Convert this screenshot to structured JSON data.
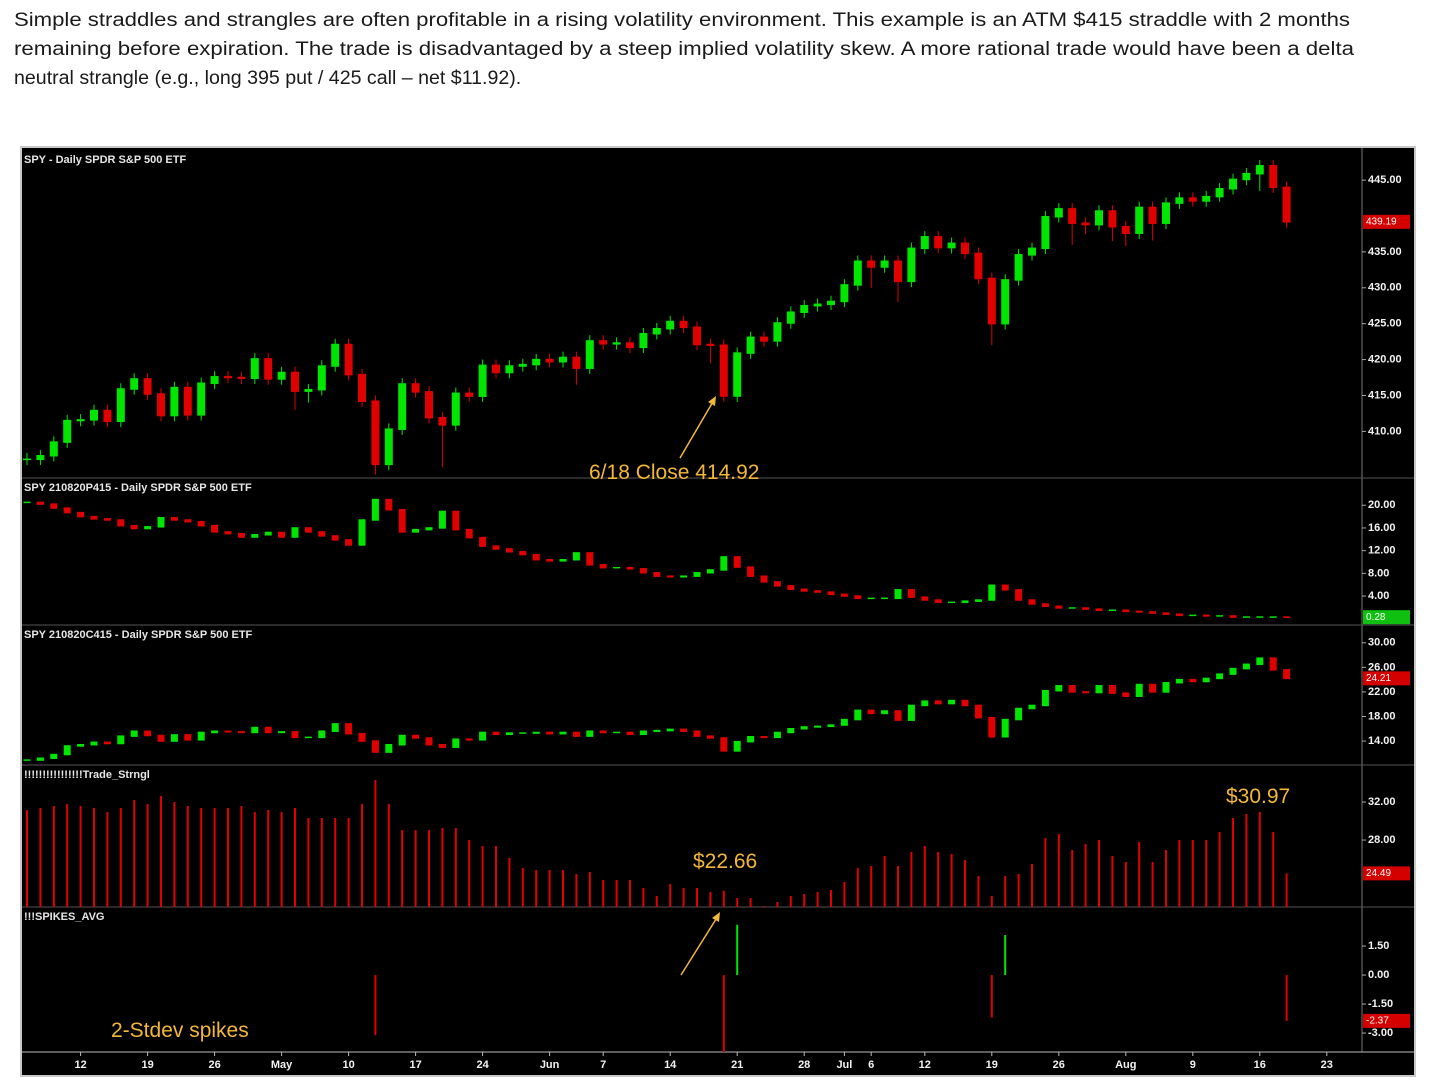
{
  "intro": [
    "Simple straddles and strangles are often profitable in a rising volatility environment.  This example is an ATM $415 straddle with 2 months",
    "remaining before expiration.  The trade is disadvantaged by a steep implied volatility skew.  A more rational trade would have been a delta",
    "neutral strangle (e.g., long 395 put / 425 call – net $11.92)."
  ],
  "chart_data": [
    {
      "type": "candlestick",
      "title": "SPY - Daily  SPDR S&P 500 ETF",
      "annotation": "6/18 Close 414.92",
      "up_color": "#00e600",
      "down_color": "#e00000",
      "tag_color": "#d40000",
      "last_label": "439.19",
      "categories": [
        null,
        null,
        null,
        null,
        "12",
        null,
        null,
        null,
        null,
        "19",
        null,
        null,
        null,
        null,
        "26",
        null,
        null,
        null,
        null,
        "May",
        null,
        null,
        null,
        null,
        "10",
        null,
        null,
        null,
        null,
        "17",
        null,
        null,
        null,
        null,
        "24",
        null,
        null,
        null,
        null,
        "Jun",
        null,
        null,
        null,
        "7",
        null,
        null,
        null,
        null,
        "14",
        null,
        null,
        null,
        null,
        "21",
        null,
        null,
        null,
        null,
        "28",
        null,
        null,
        "Jul",
        null,
        "6",
        null,
        null,
        null,
        "12",
        null,
        null,
        null,
        null,
        "19",
        null,
        null,
        null,
        null,
        "26",
        null,
        null,
        null,
        null,
        "Aug",
        null,
        null,
        null,
        null,
        "9",
        null,
        null,
        null,
        null,
        "16",
        null,
        null,
        null,
        null,
        "23"
      ],
      "close": [
        406.1,
        406.6,
        408.5,
        411.5,
        411.6,
        412.9,
        411.4,
        415.9,
        417.3,
        415.2,
        412.2,
        416.1,
        412.3,
        416.7,
        417.6,
        417.5,
        417.4,
        420.1,
        417.3,
        418.2,
        415.6,
        415.8,
        419.1,
        422.1,
        417.9,
        414.2,
        405.4,
        410.3,
        416.6,
        415.5,
        411.9,
        410.9,
        415.3,
        414.9,
        419.2,
        418.2,
        419.1,
        419.3,
        420.0,
        419.7,
        420.3,
        418.8,
        422.6,
        422.2,
        422.3,
        421.7,
        423.6,
        424.3,
        425.3,
        424.5,
        422.1,
        422.0,
        414.92,
        420.9,
        423.1,
        422.6,
        425.1,
        426.6,
        427.5,
        427.7,
        428.1,
        430.4,
        433.7,
        432.9,
        433.7,
        430.9,
        435.5,
        437.1,
        435.6,
        436.2,
        434.8,
        431.3,
        425.0,
        431.1,
        434.6,
        435.5,
        439.9,
        441.0,
        439.0,
        438.8,
        440.7,
        438.5,
        437.6,
        441.2,
        439.0,
        441.8,
        442.5,
        442.1,
        442.7,
        443.8,
        445.1,
        445.9,
        447.0,
        444.0,
        439.19,
        null,
        null,
        null
      ],
      "high": [
        407.0,
        407.4,
        409.3,
        412.3,
        412.4,
        413.7,
        413.7,
        416.7,
        418.1,
        418.1,
        416.0,
        416.9,
        416.9,
        417.5,
        418.4,
        418.4,
        418.3,
        420.9,
        420.9,
        419.0,
        419.0,
        416.6,
        419.9,
        422.9,
        422.9,
        418.7,
        415.0,
        411.1,
        417.4,
        417.4,
        416.3,
        412.7,
        416.1,
        416.1,
        420.0,
        420.0,
        419.9,
        420.1,
        420.8,
        420.8,
        421.1,
        421.1,
        423.4,
        423.4,
        423.1,
        423.1,
        424.4,
        425.1,
        426.1,
        426.1,
        425.3,
        422.9,
        422.8,
        421.7,
        423.9,
        423.9,
        425.9,
        427.4,
        428.3,
        428.5,
        428.9,
        431.2,
        434.5,
        434.5,
        434.5,
        434.5,
        436.3,
        437.9,
        437.9,
        437.0,
        437.0,
        435.6,
        432.1,
        431.9,
        435.4,
        436.3,
        440.7,
        441.8,
        441.8,
        439.8,
        441.5,
        441.5,
        439.3,
        442.0,
        442.0,
        442.6,
        443.3,
        443.3,
        443.5,
        444.6,
        445.9,
        446.7,
        447.8,
        447.8,
        444.8,
        null,
        null,
        null
      ],
      "low": [
        405.3,
        405.3,
        405.8,
        407.7,
        410.7,
        410.8,
        410.6,
        410.6,
        415.1,
        414.4,
        411.4,
        411.4,
        411.5,
        411.5,
        415.9,
        416.7,
        416.6,
        416.6,
        416.5,
        416.5,
        413.0,
        414.0,
        415.0,
        418.3,
        417.1,
        413.4,
        404.0,
        404.6,
        409.5,
        414.7,
        411.1,
        405.0,
        410.1,
        414.1,
        414.1,
        417.4,
        417.4,
        418.3,
        418.5,
        418.9,
        418.9,
        416.5,
        418.0,
        421.4,
        421.4,
        420.9,
        420.9,
        422.8,
        423.5,
        423.7,
        421.3,
        419.5,
        414.1,
        414.1,
        420.1,
        421.8,
        421.8,
        424.3,
        425.8,
        426.7,
        426.9,
        427.3,
        429.6,
        430.0,
        432.1,
        428.0,
        430.1,
        434.7,
        434.8,
        434.8,
        434.0,
        430.5,
        422.0,
        424.2,
        430.3,
        433.8,
        434.7,
        439.1,
        436.0,
        437.5,
        438.0,
        436.5,
        435.8,
        436.8,
        436.6,
        438.2,
        441.0,
        441.3,
        441.3,
        442.0,
        443.0,
        444.3,
        443.5,
        443.2,
        438.4,
        null,
        null,
        null
      ],
      "ylim": [
        403.5,
        449.2
      ],
      "yticks": [
        {
          "value": 410,
          "label": "410.00"
        },
        {
          "value": 415,
          "label": "415.00"
        },
        {
          "value": 420,
          "label": "420.00"
        },
        {
          "value": 425,
          "label": "425.00"
        },
        {
          "value": 430,
          "label": "430.00"
        },
        {
          "value": 435,
          "label": "435.00"
        },
        {
          "value": 445,
          "label": "445.00"
        }
      ]
    },
    {
      "type": "candlestick",
      "title": "SPY 210820P415 - Daily  SPDR S&P 500 ETF",
      "up_color": "#00e600",
      "down_color": "#e00000",
      "tag_color": "#10c010",
      "last_label": "0.28",
      "close": [
        20.5,
        20.2,
        19.5,
        18.7,
        18.0,
        17.6,
        17.4,
        16.4,
        15.9,
        16.2,
        17.8,
        17.4,
        17.1,
        16.4,
        15.3,
        15.0,
        14.4,
        14.8,
        15.2,
        14.4,
        16.0,
        15.3,
        14.6,
        13.9,
        13.0,
        17.4,
        21.0,
        19.2,
        15.3,
        15.7,
        16.0,
        18.9,
        15.7,
        14.3,
        12.8,
        12.3,
        11.8,
        11.3,
        10.4,
        10.2,
        10.4,
        11.6,
        9.5,
        9.0,
        9.0,
        8.8,
        8.1,
        7.5,
        7.4,
        7.5,
        8.1,
        8.6,
        10.9,
        9.1,
        7.5,
        6.5,
        5.8,
        5.2,
        4.9,
        4.7,
        4.3,
        4.0,
        3.6,
        3.6,
        3.6,
        5.1,
        3.8,
        3.3,
        2.9,
        2.9,
        3.1,
        3.3,
        5.9,
        5.1,
        3.3,
        2.6,
        2.2,
        1.9,
        1.9,
        1.7,
        1.5,
        1.5,
        1.3,
        1.2,
        1.0,
        0.8,
        0.6,
        0.6,
        0.5,
        0.5,
        0.3,
        0.3,
        0.3,
        0.3,
        0.28,
        null,
        null,
        null
      ],
      "ylim": [
        -1.1,
        24.8
      ],
      "yticks": [
        {
          "value": 4,
          "label": "4.00"
        },
        {
          "value": 8,
          "label": "8.00"
        },
        {
          "value": 12,
          "label": "12.00"
        },
        {
          "value": 16,
          "label": "16.00"
        },
        {
          "value": 20,
          "label": "20.00"
        }
      ]
    },
    {
      "type": "candlestick",
      "title": "SPY 210820C415 - Daily  SPDR S&P 500 ETF",
      "up_color": "#00e600",
      "down_color": "#e00000",
      "tag_color": "#d40000",
      "last_label": "24.21",
      "close": [
        10.9,
        11.2,
        11.8,
        13.2,
        13.4,
        13.8,
        13.6,
        14.8,
        15.6,
        14.9,
        14.0,
        15.0,
        14.2,
        15.4,
        15.6,
        15.5,
        15.4,
        16.2,
        15.4,
        15.5,
        14.6,
        14.6,
        15.6,
        16.8,
        15.2,
        14.0,
        12.2,
        13.4,
        14.9,
        14.5,
        13.4,
        13.0,
        14.3,
        14.2,
        15.4,
        15.1,
        15.3,
        15.3,
        15.4,
        15.2,
        15.4,
        14.8,
        15.6,
        15.4,
        15.4,
        15.1,
        15.6,
        15.7,
        15.9,
        15.6,
        14.8,
        14.5,
        12.4,
        13.9,
        14.7,
        14.6,
        15.4,
        16.0,
        16.3,
        16.4,
        16.6,
        17.5,
        19.0,
        18.5,
        18.9,
        17.4,
        19.8,
        20.5,
        20.1,
        20.6,
        19.8,
        17.8,
        14.7,
        17.5,
        19.3,
        19.8,
        22.2,
        23.0,
        22.0,
        21.9,
        23.0,
        21.8,
        21.3,
        23.2,
        22.0,
        23.5,
        24.0,
        23.7,
        24.2,
        24.9,
        25.8,
        26.5,
        27.5,
        25.6,
        24.21,
        null,
        null,
        null
      ],
      "ylim": [
        10.1,
        32.9
      ],
      "yticks": [
        {
          "value": 14,
          "label": "14.00"
        },
        {
          "value": 18,
          "label": "18.00"
        },
        {
          "value": 22,
          "label": "22.00"
        },
        {
          "value": 26,
          "label": "26.00"
        },
        {
          "value": 30,
          "label": "30.00"
        }
      ]
    },
    {
      "type": "bar",
      "title": "!!!!!!!!!!!!!!!!Trade_Strngl",
      "annotations": [
        "$22.66",
        "$30.97"
      ],
      "color": "#e00000",
      "tag_color": "#d40000",
      "last_label": "24.49",
      "values": [
        31.16,
        31.37,
        31.58,
        31.79,
        31.58,
        31.37,
        30.95,
        31.37,
        32.21,
        31.79,
        32.63,
        32.0,
        31.58,
        31.37,
        31.37,
        31.37,
        31.58,
        30.95,
        31.16,
        30.95,
        31.37,
        30.32,
        30.32,
        30.32,
        30.32,
        31.79,
        34.32,
        31.79,
        29.05,
        29.05,
        29.05,
        29.26,
        29.26,
        28.0,
        27.37,
        27.37,
        26.11,
        25.05,
        24.84,
        24.84,
        24.84,
        24.42,
        24.63,
        23.79,
        23.79,
        23.79,
        22.95,
        22.11,
        23.37,
        22.95,
        22.95,
        22.53,
        22.66,
        21.89,
        21.89,
        21.05,
        21.47,
        22.11,
        22.32,
        22.53,
        22.74,
        23.58,
        25.05,
        25.26,
        26.32,
        25.26,
        26.74,
        27.37,
        26.74,
        26.53,
        25.89,
        24.21,
        22.11,
        24.21,
        24.42,
        25.47,
        28.21,
        28.63,
        26.95,
        27.58,
        28.0,
        26.32,
        25.68,
        27.79,
        25.68,
        26.95,
        28.0,
        28.0,
        28.0,
        28.84,
        30.32,
        30.74,
        30.97,
        28.84,
        24.49,
        null,
        null,
        null
      ],
      "ylim": [
        20.95,
        35.9
      ],
      "yticks": [
        {
          "value": 28,
          "label": "28.00"
        },
        {
          "value": 32,
          "label": "32.00"
        }
      ]
    },
    {
      "type": "bar",
      "title": "!!!SPIKES_AVG",
      "annotation": "2-Stdev spikes",
      "up_color": "#00e600",
      "down_color": "#e00000",
      "tag_color": "#d40000",
      "last_label": "-2.37",
      "values": [
        0,
        0,
        0,
        0,
        0,
        0,
        0,
        0,
        0,
        0,
        0,
        0,
        0,
        0,
        0,
        0,
        0,
        0,
        0,
        0,
        0,
        0,
        0,
        0,
        0,
        0,
        -3.1,
        0,
        0,
        0,
        0,
        0,
        0,
        0,
        0,
        0,
        0,
        0,
        0,
        0,
        0,
        0,
        0,
        0,
        0,
        0,
        0,
        0,
        0,
        0,
        0,
        0,
        -4.0,
        2.6,
        0,
        0,
        0,
        0,
        0,
        0,
        0,
        0,
        0,
        0,
        0,
        0,
        0,
        0,
        0,
        0,
        0,
        0,
        -2.2,
        2.07,
        0,
        0,
        0,
        0,
        0,
        0,
        0,
        0,
        0,
        0,
        0,
        0,
        0,
        0,
        0,
        0,
        0,
        0,
        0,
        0,
        -2.37,
        null,
        null,
        null
      ],
      "ylim": [
        -3.98,
        3.52
      ],
      "yticks": [
        {
          "value": -3,
          "label": "-3.00"
        },
        {
          "value": -1.5,
          "label": "-1.50"
        },
        {
          "value": 0,
          "label": "0.00"
        },
        {
          "value": 1.5,
          "label": "1.50"
        }
      ]
    }
  ]
}
